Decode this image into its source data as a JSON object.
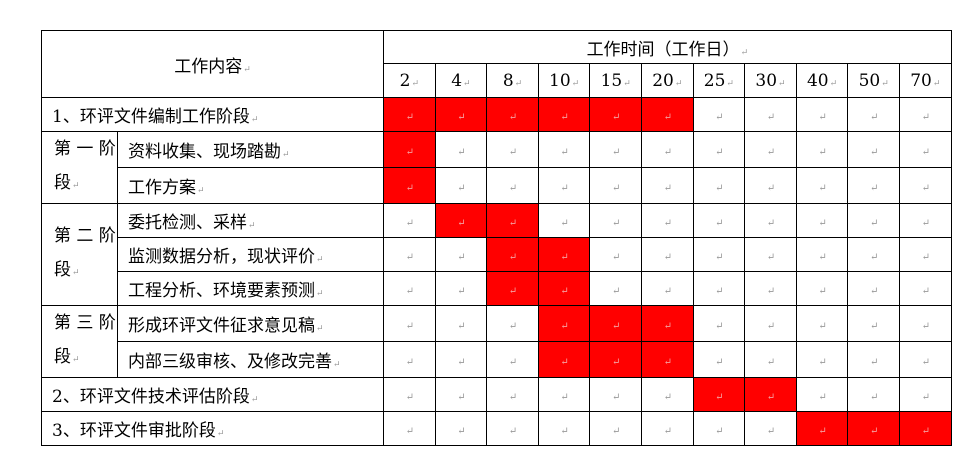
{
  "header": {
    "content_label": "工作内容",
    "time_label": "工作时间（工作日）",
    "days": [
      "2",
      "4",
      "8",
      "10",
      "15",
      "20",
      "25",
      "30",
      "40",
      "50",
      "70"
    ]
  },
  "colors": {
    "active": "#ff0000",
    "inactive": "#ffffff"
  },
  "rows": [
    {
      "type": "stage",
      "label": "1、环评文件编制工作阶段",
      "active": [
        1,
        1,
        1,
        1,
        1,
        1,
        0,
        0,
        0,
        0,
        0
      ]
    },
    {
      "type": "task",
      "phase": "第 一 阶段",
      "label": "资料收集、现场踏勘",
      "active": [
        1,
        0,
        0,
        0,
        0,
        0,
        0,
        0,
        0,
        0,
        0
      ]
    },
    {
      "type": "task",
      "label": "工作方案",
      "active": [
        1,
        0,
        0,
        0,
        0,
        0,
        0,
        0,
        0,
        0,
        0
      ]
    },
    {
      "type": "task",
      "phase": "第 二 阶段",
      "label": "委托检测、采样",
      "active": [
        0,
        1,
        1,
        0,
        0,
        0,
        0,
        0,
        0,
        0,
        0
      ]
    },
    {
      "type": "task",
      "label": "监测数据分析，现状评价",
      "active": [
        0,
        0,
        1,
        1,
        0,
        0,
        0,
        0,
        0,
        0,
        0
      ]
    },
    {
      "type": "task",
      "label": "工程分析、环境要素预测",
      "active": [
        0,
        0,
        1,
        1,
        0,
        0,
        0,
        0,
        0,
        0,
        0
      ]
    },
    {
      "type": "task",
      "phase": "第 三 阶段",
      "label": "形成环评文件征求意见稿",
      "active": [
        0,
        0,
        0,
        1,
        1,
        1,
        0,
        0,
        0,
        0,
        0
      ]
    },
    {
      "type": "task",
      "label": "内部三级审核、及修改完善",
      "active": [
        0,
        0,
        0,
        1,
        1,
        1,
        0,
        0,
        0,
        0,
        0
      ]
    },
    {
      "type": "stage",
      "label": "2、环评文件技术评估阶段",
      "active": [
        0,
        0,
        0,
        0,
        0,
        0,
        1,
        1,
        0,
        0,
        0
      ]
    },
    {
      "type": "stage",
      "label": "3、环评文件审批阶段",
      "active": [
        0,
        0,
        0,
        0,
        0,
        0,
        0,
        0,
        1,
        1,
        1
      ]
    }
  ]
}
